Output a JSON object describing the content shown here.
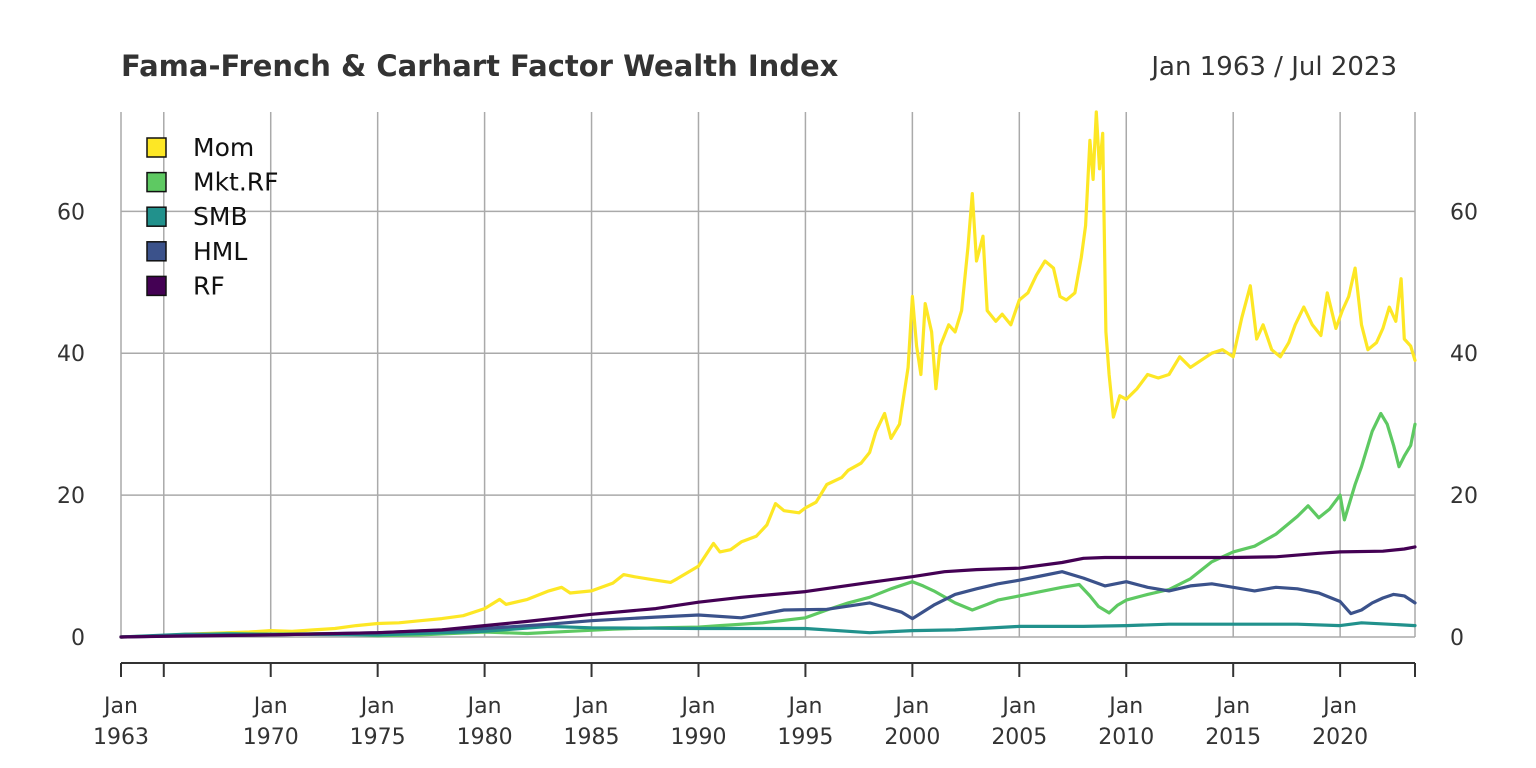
{
  "title": "Fama-French & Carhart Factor Wealth Index",
  "date_range": "Jan 1963 / Jul 2023",
  "chart_data": {
    "type": "line",
    "title": "Fama-French & Carhart Factor Wealth Index",
    "subtitle": "Jan 1963 / Jul 2023",
    "xlabel": "",
    "ylabel": "",
    "xlim": [
      1963.0,
      2023.5
    ],
    "ylim": [
      0,
      74
    ],
    "grid": true,
    "legend_position": "top-left",
    "y_ticks": [
      0,
      20,
      40,
      60
    ],
    "x_ticks": [
      {
        "x": 1963.0,
        "line1": "Jan",
        "line2": "1963"
      },
      {
        "x": 1970.0,
        "line1": "Jan",
        "line2": "1970"
      },
      {
        "x": 1975.0,
        "line1": "Jan",
        "line2": "1975"
      },
      {
        "x": 1980.0,
        "line1": "Jan",
        "line2": "1980"
      },
      {
        "x": 1985.0,
        "line1": "Jan",
        "line2": "1985"
      },
      {
        "x": 1990.0,
        "line1": "Jan",
        "line2": "1990"
      },
      {
        "x": 1995.0,
        "line1": "Jan",
        "line2": "1995"
      },
      {
        "x": 2000.0,
        "line1": "Jan",
        "line2": "2000"
      },
      {
        "x": 2005.0,
        "line1": "Jan",
        "line2": "2005"
      },
      {
        "x": 2010.0,
        "line1": "Jan",
        "line2": "2010"
      },
      {
        "x": 2015.0,
        "line1": "Jan",
        "line2": "2015"
      },
      {
        "x": 2020.0,
        "line1": "Jan",
        "line2": "2020"
      }
    ],
    "x_minor_gridlines": [
      1965.0
    ],
    "series": [
      {
        "name": "Mom",
        "color": "#fde725",
        "points": [
          [
            1963.0,
            0.0
          ],
          [
            1964.0,
            0.1
          ],
          [
            1965.0,
            0.2
          ],
          [
            1966.0,
            0.4
          ],
          [
            1967.0,
            0.5
          ],
          [
            1968.0,
            0.6
          ],
          [
            1969.0,
            0.7
          ],
          [
            1970.0,
            0.9
          ],
          [
            1971.0,
            0.8
          ],
          [
            1972.0,
            1.0
          ],
          [
            1973.0,
            1.2
          ],
          [
            1974.0,
            1.6
          ],
          [
            1975.0,
            1.9
          ],
          [
            1976.0,
            2.0
          ],
          [
            1977.0,
            2.3
          ],
          [
            1978.0,
            2.6
          ],
          [
            1979.0,
            3.0
          ],
          [
            1980.0,
            4.0
          ],
          [
            1980.7,
            5.3
          ],
          [
            1981.0,
            4.6
          ],
          [
            1982.0,
            5.3
          ],
          [
            1983.0,
            6.5
          ],
          [
            1983.6,
            7.0
          ],
          [
            1984.0,
            6.2
          ],
          [
            1985.0,
            6.5
          ],
          [
            1986.0,
            7.6
          ],
          [
            1986.5,
            8.8
          ],
          [
            1987.0,
            8.5
          ],
          [
            1988.0,
            8.0
          ],
          [
            1988.7,
            7.7
          ],
          [
            1989.0,
            8.2
          ],
          [
            1990.0,
            10.0
          ],
          [
            1990.7,
            13.2
          ],
          [
            1991.0,
            12.0
          ],
          [
            1991.5,
            12.3
          ],
          [
            1992.0,
            13.4
          ],
          [
            1992.7,
            14.2
          ],
          [
            1993.2,
            15.8
          ],
          [
            1993.6,
            18.8
          ],
          [
            1994.0,
            17.8
          ],
          [
            1994.7,
            17.5
          ],
          [
            1995.0,
            18.2
          ],
          [
            1995.5,
            19.0
          ],
          [
            1996.0,
            21.5
          ],
          [
            1996.7,
            22.5
          ],
          [
            1997.0,
            23.5
          ],
          [
            1997.6,
            24.5
          ],
          [
            1998.0,
            26.0
          ],
          [
            1998.3,
            29.0
          ],
          [
            1998.7,
            31.5
          ],
          [
            1999.0,
            28.0
          ],
          [
            1999.4,
            30.0
          ],
          [
            1999.8,
            38.0
          ],
          [
            2000.0,
            48.0
          ],
          [
            2000.2,
            41.0
          ],
          [
            2000.4,
            37.0
          ],
          [
            2000.6,
            47.0
          ],
          [
            2000.9,
            43.0
          ],
          [
            2001.1,
            35.0
          ],
          [
            2001.3,
            41.0
          ],
          [
            2001.7,
            44.0
          ],
          [
            2002.0,
            43.0
          ],
          [
            2002.3,
            46.0
          ],
          [
            2002.6,
            55.0
          ],
          [
            2002.8,
            62.5
          ],
          [
            2003.0,
            53.0
          ],
          [
            2003.3,
            56.5
          ],
          [
            2003.5,
            46.0
          ],
          [
            2003.9,
            44.5
          ],
          [
            2004.2,
            45.5
          ],
          [
            2004.6,
            44.0
          ],
          [
            2005.0,
            47.5
          ],
          [
            2005.4,
            48.5
          ],
          [
            2005.8,
            51.0
          ],
          [
            2006.2,
            53.0
          ],
          [
            2006.6,
            52.0
          ],
          [
            2006.9,
            48.0
          ],
          [
            2007.2,
            47.5
          ],
          [
            2007.6,
            48.5
          ],
          [
            2007.9,
            53.5
          ],
          [
            2008.1,
            58.0
          ],
          [
            2008.3,
            70.0
          ],
          [
            2008.45,
            64.5
          ],
          [
            2008.6,
            74.0
          ],
          [
            2008.75,
            66.0
          ],
          [
            2008.9,
            71.0
          ],
          [
            2009.05,
            43.0
          ],
          [
            2009.2,
            37.0
          ],
          [
            2009.4,
            31.0
          ],
          [
            2009.7,
            34.0
          ],
          [
            2010.0,
            33.5
          ],
          [
            2010.5,
            35.0
          ],
          [
            2011.0,
            37.0
          ],
          [
            2011.5,
            36.5
          ],
          [
            2012.0,
            37.0
          ],
          [
            2012.5,
            39.5
          ],
          [
            2013.0,
            38.0
          ],
          [
            2013.5,
            39.0
          ],
          [
            2014.0,
            40.0
          ],
          [
            2014.5,
            40.5
          ],
          [
            2015.0,
            39.5
          ],
          [
            2015.4,
            45.0
          ],
          [
            2015.8,
            49.5
          ],
          [
            2016.1,
            42.0
          ],
          [
            2016.4,
            44.0
          ],
          [
            2016.8,
            40.5
          ],
          [
            2017.2,
            39.5
          ],
          [
            2017.6,
            41.5
          ],
          [
            2017.9,
            44.0
          ],
          [
            2018.3,
            46.5
          ],
          [
            2018.7,
            44.0
          ],
          [
            2019.1,
            42.5
          ],
          [
            2019.4,
            48.5
          ],
          [
            2019.8,
            43.5
          ],
          [
            2020.1,
            46.0
          ],
          [
            2020.4,
            48.0
          ],
          [
            2020.7,
            52.0
          ],
          [
            2021.0,
            44.0
          ],
          [
            2021.3,
            40.5
          ],
          [
            2021.7,
            41.5
          ],
          [
            2022.0,
            43.5
          ],
          [
            2022.3,
            46.5
          ],
          [
            2022.6,
            44.5
          ],
          [
            2022.85,
            50.5
          ],
          [
            2023.0,
            42.0
          ],
          [
            2023.3,
            41.0
          ],
          [
            2023.5,
            39.0
          ]
        ]
      },
      {
        "name": "Mkt.RF",
        "color": "#5ec962",
        "points": [
          [
            1963.0,
            0.0
          ],
          [
            1965.0,
            0.2
          ],
          [
            1968.0,
            0.5
          ],
          [
            1970.0,
            0.4
          ],
          [
            1973.0,
            0.5
          ],
          [
            1975.0,
            0.2
          ],
          [
            1977.0,
            0.3
          ],
          [
            1980.0,
            0.7
          ],
          [
            1982.0,
            0.5
          ],
          [
            1984.0,
            0.8
          ],
          [
            1986.0,
            1.1
          ],
          [
            1988.0,
            1.3
          ],
          [
            1990.0,
            1.4
          ],
          [
            1991.0,
            1.6
          ],
          [
            1993.0,
            2.0
          ],
          [
            1995.0,
            2.7
          ],
          [
            1996.0,
            3.8
          ],
          [
            1997.0,
            4.8
          ],
          [
            1998.0,
            5.6
          ],
          [
            1999.0,
            6.8
          ],
          [
            2000.0,
            7.8
          ],
          [
            2000.5,
            7.2
          ],
          [
            2001.0,
            6.5
          ],
          [
            2002.0,
            4.8
          ],
          [
            2002.8,
            3.8
          ],
          [
            2003.5,
            4.6
          ],
          [
            2004.0,
            5.2
          ],
          [
            2005.0,
            5.8
          ],
          [
            2006.0,
            6.4
          ],
          [
            2007.0,
            7.0
          ],
          [
            2007.8,
            7.4
          ],
          [
            2008.3,
            5.8
          ],
          [
            2008.7,
            4.3
          ],
          [
            2009.2,
            3.4
          ],
          [
            2009.6,
            4.5
          ],
          [
            2010.0,
            5.2
          ],
          [
            2011.0,
            6.0
          ],
          [
            2012.0,
            6.7
          ],
          [
            2013.0,
            8.2
          ],
          [
            2014.0,
            10.6
          ],
          [
            2015.0,
            12.0
          ],
          [
            2016.0,
            12.8
          ],
          [
            2017.0,
            14.5
          ],
          [
            2018.0,
            17.0
          ],
          [
            2018.5,
            18.5
          ],
          [
            2019.0,
            16.8
          ],
          [
            2019.5,
            18.0
          ],
          [
            2020.0,
            20.0
          ],
          [
            2020.2,
            16.5
          ],
          [
            2020.7,
            21.5
          ],
          [
            2021.0,
            24.0
          ],
          [
            2021.5,
            29.0
          ],
          [
            2021.9,
            31.5
          ],
          [
            2022.2,
            30.0
          ],
          [
            2022.5,
            27.0
          ],
          [
            2022.75,
            24.0
          ],
          [
            2023.0,
            25.5
          ],
          [
            2023.3,
            27.0
          ],
          [
            2023.5,
            30.0
          ]
        ]
      },
      {
        "name": "SMB",
        "color": "#21918c",
        "points": [
          [
            1963.0,
            0.0
          ],
          [
            1966.0,
            0.4
          ],
          [
            1970.0,
            0.4
          ],
          [
            1975.0,
            0.3
          ],
          [
            1980.0,
            0.8
          ],
          [
            1983.0,
            1.5
          ],
          [
            1985.0,
            1.3
          ],
          [
            1990.0,
            1.2
          ],
          [
            1995.0,
            1.2
          ],
          [
            1998.0,
            0.6
          ],
          [
            2000.0,
            0.9
          ],
          [
            2002.0,
            1.0
          ],
          [
            2005.0,
            1.5
          ],
          [
            2008.0,
            1.5
          ],
          [
            2010.0,
            1.6
          ],
          [
            2012.0,
            1.8
          ],
          [
            2015.0,
            1.8
          ],
          [
            2018.0,
            1.8
          ],
          [
            2020.0,
            1.6
          ],
          [
            2021.0,
            2.0
          ],
          [
            2023.5,
            1.6
          ]
        ]
      },
      {
        "name": "HML",
        "color": "#3b528b",
        "points": [
          [
            1963.0,
            0.0
          ],
          [
            1966.0,
            0.2
          ],
          [
            1970.0,
            0.3
          ],
          [
            1975.0,
            0.6
          ],
          [
            1980.0,
            1.2
          ],
          [
            1983.0,
            1.8
          ],
          [
            1985.0,
            2.3
          ],
          [
            1988.0,
            2.8
          ],
          [
            1990.0,
            3.1
          ],
          [
            1992.0,
            2.7
          ],
          [
            1994.0,
            3.8
          ],
          [
            1996.0,
            3.9
          ],
          [
            1998.0,
            4.8
          ],
          [
            1999.5,
            3.5
          ],
          [
            2000.0,
            2.6
          ],
          [
            2001.0,
            4.5
          ],
          [
            2002.0,
            6.0
          ],
          [
            2003.0,
            6.8
          ],
          [
            2004.0,
            7.5
          ],
          [
            2005.0,
            8.0
          ],
          [
            2006.0,
            8.6
          ],
          [
            2007.0,
            9.2
          ],
          [
            2008.0,
            8.3
          ],
          [
            2009.0,
            7.2
          ],
          [
            2010.0,
            7.8
          ],
          [
            2011.0,
            7.0
          ],
          [
            2012.0,
            6.5
          ],
          [
            2013.0,
            7.2
          ],
          [
            2014.0,
            7.5
          ],
          [
            2015.0,
            7.0
          ],
          [
            2016.0,
            6.5
          ],
          [
            2017.0,
            7.0
          ],
          [
            2018.0,
            6.8
          ],
          [
            2019.0,
            6.2
          ],
          [
            2020.0,
            5.0
          ],
          [
            2020.5,
            3.3
          ],
          [
            2021.0,
            3.8
          ],
          [
            2021.5,
            4.8
          ],
          [
            2022.0,
            5.5
          ],
          [
            2022.5,
            6.0
          ],
          [
            2023.0,
            5.8
          ],
          [
            2023.5,
            4.8
          ]
        ]
      },
      {
        "name": "RF",
        "color": "#440154",
        "points": [
          [
            1963.0,
            0.0
          ],
          [
            1965.0,
            0.1
          ],
          [
            1970.0,
            0.3
          ],
          [
            1975.0,
            0.6
          ],
          [
            1978.0,
            1.0
          ],
          [
            1980.0,
            1.6
          ],
          [
            1982.0,
            2.2
          ],
          [
            1985.0,
            3.2
          ],
          [
            1988.0,
            4.0
          ],
          [
            1990.0,
            4.9
          ],
          [
            1992.0,
            5.6
          ],
          [
            1995.0,
            6.4
          ],
          [
            1998.0,
            7.7
          ],
          [
            2000.0,
            8.5
          ],
          [
            2001.5,
            9.2
          ],
          [
            2003.0,
            9.5
          ],
          [
            2005.0,
            9.7
          ],
          [
            2007.0,
            10.5
          ],
          [
            2008.0,
            11.1
          ],
          [
            2009.0,
            11.2
          ],
          [
            2012.0,
            11.2
          ],
          [
            2015.0,
            11.2
          ],
          [
            2017.0,
            11.3
          ],
          [
            2019.0,
            11.8
          ],
          [
            2020.0,
            12.0
          ],
          [
            2022.0,
            12.1
          ],
          [
            2023.0,
            12.4
          ],
          [
            2023.5,
            12.7
          ]
        ]
      }
    ]
  }
}
